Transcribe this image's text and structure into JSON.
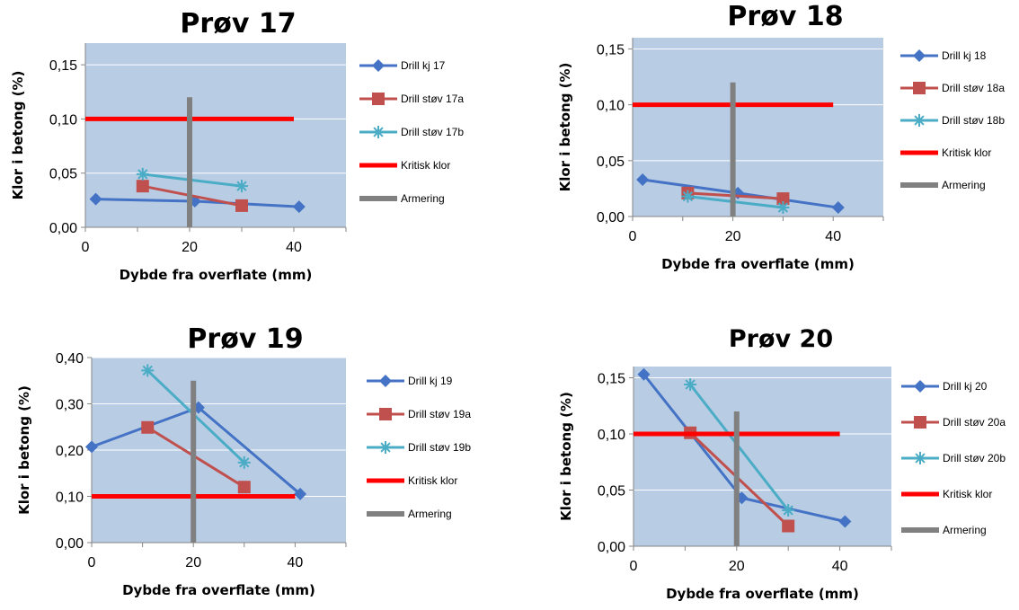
{
  "chart_data": [
    {
      "type": "line",
      "title": "Prøv 17",
      "xlabel": "Dybde fra overflate (mm)",
      "ylabel": "Klor i betong (%)",
      "xlim": [
        0,
        50
      ],
      "ylim": [
        0,
        0.17
      ],
      "xticks": [
        "0",
        "20",
        "40"
      ],
      "yticks": [
        "0,00",
        "0,05",
        "0,10",
        "0,15"
      ],
      "grid": true,
      "legend_position": "right",
      "series": [
        {
          "name": "Drill kj 17",
          "color": "#4472c4",
          "marker": "diamond",
          "points": [
            [
              2,
              0.026
            ],
            [
              21,
              0.024
            ],
            [
              41,
              0.019
            ]
          ]
        },
        {
          "name": "Drill støv 17a",
          "color": "#c0504d",
          "marker": "square",
          "points": [
            [
              11,
              0.038
            ],
            [
              30,
              0.02
            ]
          ]
        },
        {
          "name": "Drill støv 17b",
          "color": "#4bacc6",
          "marker": "star",
          "points": [
            [
              11,
              0.049
            ],
            [
              30,
              0.038
            ]
          ]
        },
        {
          "name": "Kritisk klor",
          "color": "#ff0000",
          "marker": "none",
          "width": 5,
          "points": [
            [
              0,
              0.1
            ],
            [
              40,
              0.1
            ]
          ]
        },
        {
          "name": "Armering",
          "color": "#808080",
          "marker": "none",
          "width": 6,
          "points": [
            [
              20,
              0
            ],
            [
              20,
              0.12
            ]
          ]
        }
      ]
    },
    {
      "type": "line",
      "title": "Prøv 18",
      "xlabel": "Dybde fra overflate (mm)",
      "ylabel": "Klor i betong (%)",
      "xlim": [
        0,
        50
      ],
      "ylim": [
        0,
        0.16
      ],
      "xticks": [
        "0",
        "20",
        "40"
      ],
      "yticks": [
        "0,00",
        "0,05",
        "0,10",
        "0,15"
      ],
      "grid": true,
      "legend_position": "right",
      "series": [
        {
          "name": "Drill kj 18",
          "color": "#4472c4",
          "marker": "diamond",
          "points": [
            [
              2,
              0.033
            ],
            [
              21,
              0.021
            ],
            [
              41,
              0.008
            ]
          ]
        },
        {
          "name": "Drill støv 18a",
          "color": "#c0504d",
          "marker": "square",
          "points": [
            [
              11,
              0.021
            ],
            [
              30,
              0.016
            ]
          ]
        },
        {
          "name": "Drill støv 18b",
          "color": "#4bacc6",
          "marker": "star",
          "points": [
            [
              11,
              0.018
            ],
            [
              30,
              0.008
            ]
          ]
        },
        {
          "name": "Kritisk klor",
          "color": "#ff0000",
          "marker": "none",
          "width": 5,
          "points": [
            [
              0,
              0.1
            ],
            [
              40,
              0.1
            ]
          ]
        },
        {
          "name": "Armering",
          "color": "#808080",
          "marker": "none",
          "width": 6,
          "points": [
            [
              20,
              0
            ],
            [
              20,
              0.12
            ]
          ]
        }
      ]
    },
    {
      "type": "line",
      "title": "Prøv 19",
      "xlabel": "Dybde fra overflate (mm)",
      "ylabel": "Klor i betong (%)",
      "xlim": [
        0,
        50
      ],
      "ylim": [
        0,
        0.4
      ],
      "xticks": [
        "0",
        "20",
        "40"
      ],
      "yticks": [
        "0,00",
        "0,10",
        "0,20",
        "0,30",
        "0,40"
      ],
      "grid": true,
      "legend_position": "right",
      "series": [
        {
          "name": "Drill kj 19",
          "color": "#4472c4",
          "marker": "diamond",
          "points": [
            [
              0,
              0.207
            ],
            [
              21,
              0.292
            ],
            [
              41,
              0.105
            ]
          ]
        },
        {
          "name": "Drill støv 19a",
          "color": "#c0504d",
          "marker": "square",
          "points": [
            [
              11,
              0.249
            ],
            [
              30,
              0.12
            ]
          ]
        },
        {
          "name": "Drill støv 19b",
          "color": "#4bacc6",
          "marker": "star",
          "points": [
            [
              11,
              0.372
            ],
            [
              30,
              0.173
            ]
          ]
        },
        {
          "name": "Kritisk klor",
          "color": "#ff0000",
          "marker": "none",
          "width": 5,
          "points": [
            [
              0,
              0.1
            ],
            [
              40,
              0.1
            ]
          ]
        },
        {
          "name": "Armering",
          "color": "#808080",
          "marker": "none",
          "width": 6,
          "points": [
            [
              20,
              0
            ],
            [
              20,
              0.35
            ]
          ]
        }
      ]
    },
    {
      "type": "line",
      "title": "Prøv 20",
      "xlabel": "Dybde fra overflate (mm)",
      "ylabel": "Klor i betong (%)",
      "xlim": [
        0,
        50
      ],
      "ylim": [
        0,
        0.16
      ],
      "xticks": [
        "0",
        "20",
        "40"
      ],
      "yticks": [
        "0,00",
        "0,05",
        "0,10",
        "0,15"
      ],
      "grid": true,
      "legend_position": "right",
      "series": [
        {
          "name": "Drill kj 20",
          "color": "#4472c4",
          "marker": "diamond",
          "points": [
            [
              2,
              0.153
            ],
            [
              21,
              0.043
            ],
            [
              41,
              0.022
            ]
          ]
        },
        {
          "name": "Drill støv 20a",
          "color": "#c0504d",
          "marker": "square",
          "points": [
            [
              11,
              0.101
            ],
            [
              30,
              0.018
            ]
          ]
        },
        {
          "name": "Drill støv 20b",
          "color": "#4bacc6",
          "marker": "star",
          "points": [
            [
              11,
              0.144
            ],
            [
              30,
              0.032
            ]
          ]
        },
        {
          "name": "Kritisk klor",
          "color": "#ff0000",
          "marker": "none",
          "width": 5,
          "points": [
            [
              0,
              0.1
            ],
            [
              40,
              0.1
            ]
          ]
        },
        {
          "name": "Armering",
          "color": "#808080",
          "marker": "none",
          "width": 6,
          "points": [
            [
              20,
              0
            ],
            [
              20,
              0.12
            ]
          ]
        }
      ]
    }
  ]
}
